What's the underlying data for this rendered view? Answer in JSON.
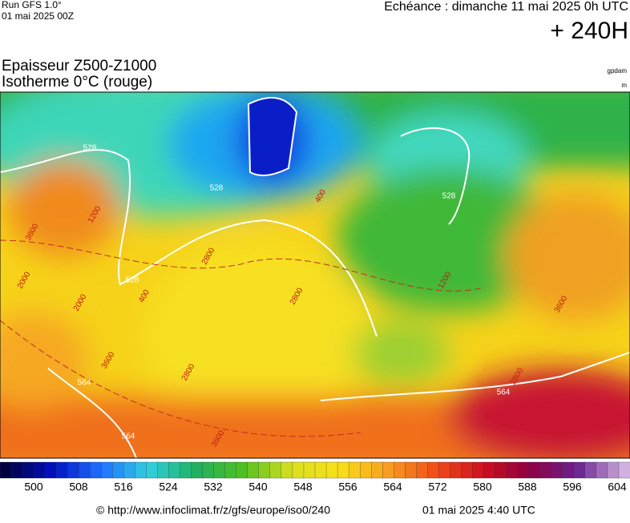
{
  "header": {
    "run": "Run GFS 1.0°",
    "run_date": "01 mai 2025 00Z",
    "echeance": "Echéance : dimanche 11 mai 2025 0h UTC",
    "lead": "+ 240H",
    "title_line1": "Epaisseur Z500-Z1000",
    "title_line2": "Isotherme 0°C (rouge)",
    "unit1": "gpdam",
    "unit2": "m"
  },
  "map": {
    "labels": [
      {
        "text": "528",
        "kind": "thickness"
      },
      {
        "text": "528",
        "kind": "thickness"
      },
      {
        "text": "528",
        "kind": "thickness"
      },
      {
        "text": "528",
        "kind": "thickness"
      },
      {
        "text": "564",
        "kind": "thickness"
      },
      {
        "text": "564",
        "kind": "thickness"
      },
      {
        "text": "564",
        "kind": "thickness"
      },
      {
        "text": "2800",
        "kind": "iso0"
      },
      {
        "text": "3600",
        "kind": "iso0"
      },
      {
        "text": "2000",
        "kind": "iso0"
      },
      {
        "text": "1200",
        "kind": "iso0"
      },
      {
        "text": "400",
        "kind": "iso0"
      },
      {
        "text": "2800",
        "kind": "iso0"
      },
      {
        "text": "3600",
        "kind": "iso0"
      },
      {
        "text": "2000",
        "kind": "iso0"
      },
      {
        "text": "1200",
        "kind": "iso0"
      },
      {
        "text": "400",
        "kind": "iso0"
      },
      {
        "text": "2800",
        "kind": "iso0"
      },
      {
        "text": "3600",
        "kind": "iso0"
      },
      {
        "text": "2800",
        "kind": "iso0"
      },
      {
        "text": "3600",
        "kind": "iso0"
      }
    ]
  },
  "colorbar": {
    "labels": [
      "500",
      "508",
      "516",
      "524",
      "532",
      "540",
      "548",
      "556",
      "564",
      "572",
      "580",
      "588",
      "596",
      "604"
    ]
  },
  "footer": {
    "source": "© http://www.infoclimat.fr/z/gfs/europe/iso0/240",
    "generated": "01 mai 2025  4:40 UTC"
  }
}
